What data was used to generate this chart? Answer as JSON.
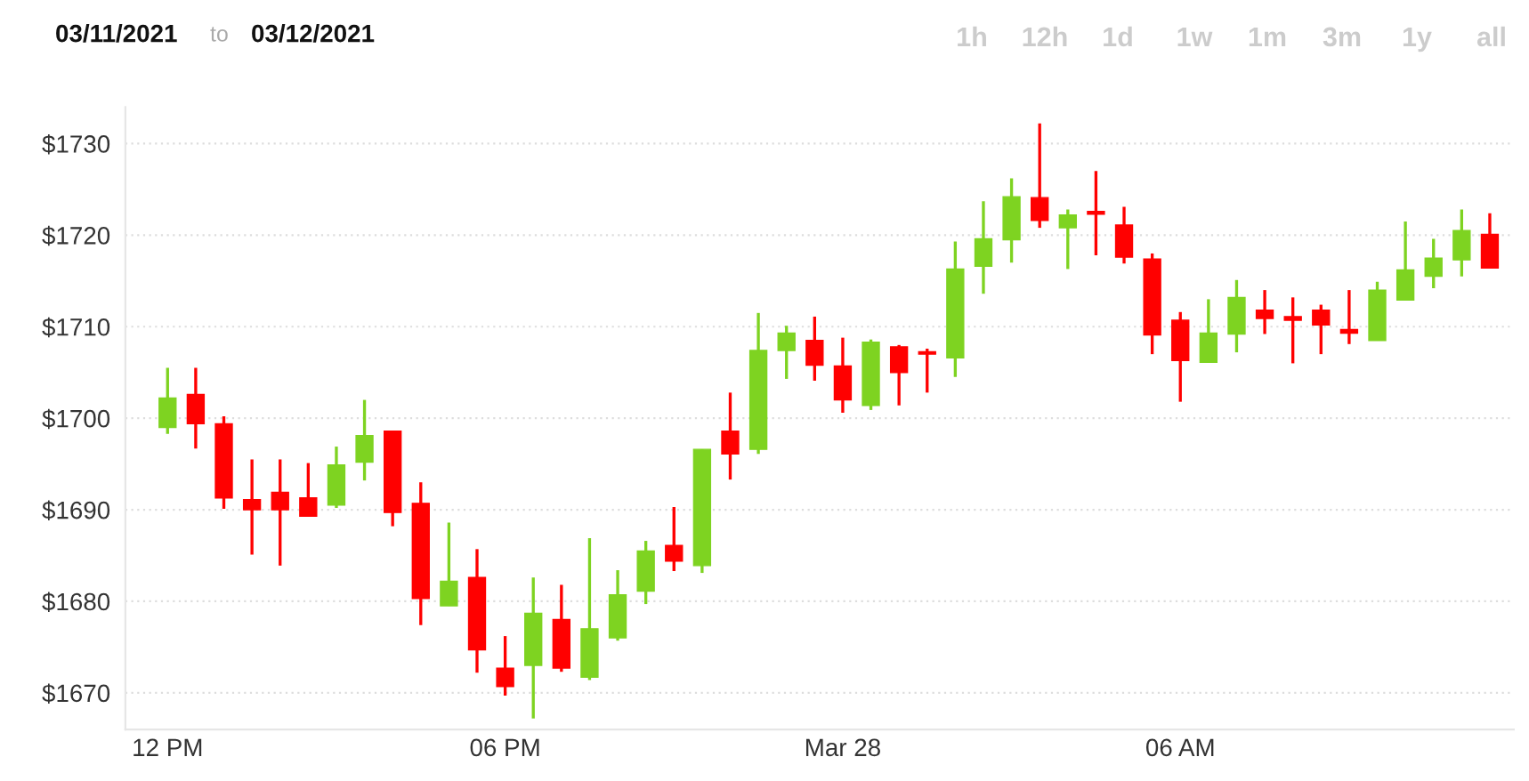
{
  "chart_data": {
    "type": "candlestick",
    "annotations": [
      "03/11/2021",
      "to",
      "03/12/2021",
      "1h",
      "12h",
      "1d",
      "1w",
      "1m",
      "3m",
      "1y",
      "all"
    ],
    "categories": [
      "12 PM",
      null,
      null,
      null,
      null,
      null,
      null,
      null,
      null,
      null,
      null,
      null,
      "06 PM",
      null,
      null,
      null,
      null,
      null,
      null,
      null,
      null,
      null,
      null,
      null,
      "Mar 28",
      null,
      null,
      null,
      null,
      null,
      null,
      null,
      null,
      null,
      null,
      null,
      "06 AM",
      null,
      null,
      null,
      null,
      null,
      null,
      null,
      null,
      null,
      null,
      null
    ],
    "ohlc": [
      [
        1699.0,
        1705.5,
        1698.3,
        1702.2
      ],
      [
        1702.6,
        1705.5,
        1696.7,
        1699.4
      ],
      [
        1699.4,
        1700.2,
        1690.1,
        1691.3
      ],
      [
        1691.1,
        1695.5,
        1685.1,
        1690.0
      ],
      [
        1691.9,
        1695.5,
        1683.9,
        1690.0
      ],
      [
        1691.3,
        1695.1,
        1689.3,
        1689.3
      ],
      [
        1690.5,
        1696.9,
        1690.2,
        1694.9
      ],
      [
        1695.2,
        1702.0,
        1693.2,
        1698.1
      ],
      [
        1698.6,
        1698.6,
        1688.2,
        1689.7
      ],
      [
        1690.7,
        1693.0,
        1677.4,
        1680.3
      ],
      [
        1679.5,
        1688.6,
        1679.5,
        1682.2
      ],
      [
        1682.6,
        1685.7,
        1672.2,
        1674.7
      ],
      [
        1672.7,
        1676.2,
        1669.7,
        1670.7
      ],
      [
        1673.0,
        1682.6,
        1667.2,
        1678.7
      ],
      [
        1678.0,
        1681.8,
        1672.3,
        1672.7
      ],
      [
        1671.7,
        1686.9,
        1671.4,
        1677.0
      ],
      [
        1676.0,
        1683.4,
        1675.7,
        1680.7
      ],
      [
        1681.1,
        1686.6,
        1679.7,
        1685.5
      ],
      [
        1686.1,
        1690.3,
        1683.3,
        1684.4
      ],
      [
        1683.9,
        1696.6,
        1683.1,
        1696.6
      ],
      [
        1698.6,
        1702.8,
        1693.3,
        1696.1
      ],
      [
        1696.6,
        1711.5,
        1696.1,
        1707.4
      ],
      [
        1707.4,
        1710.1,
        1704.3,
        1709.3
      ],
      [
        1708.5,
        1711.1,
        1704.1,
        1705.8
      ],
      [
        1705.7,
        1708.8,
        1700.6,
        1702.0
      ],
      [
        1701.4,
        1708.6,
        1700.9,
        1708.3
      ],
      [
        1707.8,
        1708.0,
        1701.4,
        1705.0
      ],
      [
        1707.2,
        1707.6,
        1702.8,
        1707.0
      ],
      [
        1706.6,
        1719.3,
        1704.5,
        1716.3
      ],
      [
        1716.6,
        1723.7,
        1713.6,
        1719.6
      ],
      [
        1719.5,
        1726.2,
        1717.0,
        1724.2
      ],
      [
        1724.1,
        1732.2,
        1720.8,
        1721.6
      ],
      [
        1720.8,
        1722.8,
        1716.3,
        1722.2
      ],
      [
        1722.6,
        1727.0,
        1717.8,
        1722.3
      ],
      [
        1721.1,
        1723.1,
        1716.9,
        1717.6
      ],
      [
        1717.4,
        1718.0,
        1707.0,
        1709.1
      ],
      [
        1710.7,
        1711.6,
        1701.8,
        1706.3
      ],
      [
        1706.1,
        1713.0,
        1706.1,
        1709.3
      ],
      [
        1709.2,
        1715.1,
        1707.2,
        1713.2
      ],
      [
        1711.8,
        1714.0,
        1709.2,
        1710.9
      ],
      [
        1711.1,
        1713.2,
        1706.0,
        1710.7
      ],
      [
        1711.8,
        1712.4,
        1707.0,
        1710.2
      ],
      [
        1709.7,
        1714.0,
        1708.1,
        1709.3
      ],
      [
        1708.5,
        1714.9,
        1708.5,
        1714.0
      ],
      [
        1712.9,
        1721.5,
        1712.9,
        1716.2
      ],
      [
        1715.5,
        1719.6,
        1714.2,
        1717.5
      ],
      [
        1717.3,
        1722.8,
        1715.5,
        1720.5
      ],
      [
        1720.1,
        1722.4,
        1716.4,
        1716.4
      ]
    ],
    "colors": [
      "#7ed321",
      "#ff0000",
      "#ff0000",
      "#ff0000",
      "#ff0000",
      "#ff0000",
      "#7ed321",
      "#7ed321",
      "#ff0000",
      "#ff0000",
      "#7ed321",
      "#ff0000",
      "#ff0000",
      "#7ed321",
      "#ff0000",
      "#7ed321",
      "#7ed321",
      "#7ed321",
      "#ff0000",
      "#7ed321",
      "#ff0000",
      "#7ed321",
      "#7ed321",
      "#ff0000",
      "#ff0000",
      "#7ed321",
      "#ff0000",
      "#ff0000",
      "#7ed321",
      "#7ed321",
      "#7ed321",
      "#ff0000",
      "#7ed321",
      "#ff0000",
      "#ff0000",
      "#ff0000",
      "#ff0000",
      "#7ed321",
      "#7ed321",
      "#ff0000",
      "#ff0000",
      "#ff0000",
      "#ff0000",
      "#7ed321",
      "#7ed321",
      "#7ed321",
      "#7ed321",
      "#ff0000"
    ],
    "ylim": [
      1666,
      1734
    ],
    "yticks": [
      {
        "value": 1670,
        "label": "$1670"
      },
      {
        "value": 1680,
        "label": "$1680"
      },
      {
        "value": 1690,
        "label": "$1690"
      },
      {
        "value": 1700,
        "label": "$1700"
      },
      {
        "value": 1710,
        "label": "$1710"
      },
      {
        "value": 1720,
        "label": "$1720"
      },
      {
        "value": 1730,
        "label": "$1730"
      }
    ],
    "grid": "y"
  }
}
